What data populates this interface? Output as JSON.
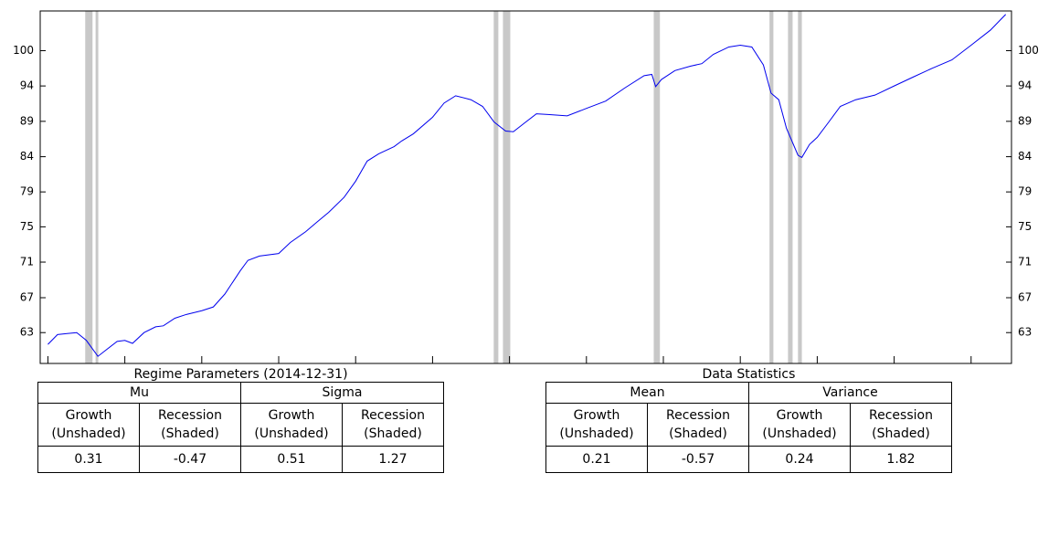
{
  "chart_data": {
    "type": "line",
    "log_scale": true,
    "color": "#0000ee",
    "shade_color": "#c8c8c8",
    "x": [
      1990.0,
      1990.25,
      1990.5,
      1990.75,
      1991.0,
      1991.3,
      1991.5,
      1991.8,
      1992.0,
      1992.2,
      1992.5,
      1992.8,
      1993.0,
      1993.3,
      1993.6,
      1994.0,
      1994.3,
      1994.6,
      1995.0,
      1995.2,
      1995.5,
      1996.0,
      1996.3,
      1996.7,
      1997.0,
      1997.3,
      1997.7,
      1998.0,
      1998.3,
      1998.6,
      1999.0,
      1999.2,
      1999.5,
      2000.0,
      2000.3,
      2000.6,
      2001.0,
      2001.3,
      2001.6,
      2001.9,
      2002.1,
      2002.4,
      2002.7,
      2003.0,
      2003.5,
      2004.0,
      2004.5,
      2005.0,
      2005.5,
      2005.7,
      2005.8,
      2005.95,
      2006.3,
      2006.7,
      2007.0,
      2007.3,
      2007.7,
      2008.0,
      2008.3,
      2008.6,
      2008.8,
      2009.0,
      2009.2,
      2009.5,
      2009.6,
      2009.8,
      2010.0,
      2010.3,
      2010.6,
      2011.0,
      2011.5,
      2012.0,
      2012.5,
      2013.0,
      2013.5,
      2014.0,
      2014.5,
      2014.9
    ],
    "values": [
      61.9,
      62.9,
      63.0,
      63.1,
      62.3,
      60.7,
      61.3,
      62.2,
      62.3,
      62.0,
      63.1,
      63.7,
      63.8,
      64.6,
      65.0,
      65.4,
      65.8,
      67.2,
      69.8,
      71.0,
      71.5,
      71.8,
      73.1,
      74.4,
      75.6,
      76.8,
      78.7,
      80.8,
      83.5,
      84.5,
      85.5,
      86.3,
      87.3,
      89.7,
      91.8,
      92.9,
      92.3,
      91.3,
      89.0,
      87.7,
      87.6,
      88.9,
      90.2,
      90.1,
      89.9,
      91.0,
      92.1,
      94.1,
      96.0,
      96.2,
      94.3,
      95.4,
      96.8,
      97.5,
      97.9,
      99.4,
      100.6,
      100.9,
      100.6,
      97.7,
      93.3,
      92.3,
      88.1,
      84.3,
      84.0,
      85.8,
      86.8,
      89.0,
      91.3,
      92.3,
      93.0,
      94.4,
      95.8,
      97.2,
      98.5,
      100.9,
      103.4,
      106.1
    ],
    "shaded": [
      [
        1990.97,
        1991.16
      ],
      [
        1991.24,
        1991.31
      ],
      [
        2001.59,
        2001.71
      ],
      [
        2001.83,
        2002.02
      ],
      [
        2005.75,
        2005.91
      ],
      [
        2008.76,
        2008.86
      ],
      [
        2009.24,
        2009.36
      ],
      [
        2009.5,
        2009.6
      ]
    ],
    "xlim": [
      1989.8,
      2015.05
    ],
    "xticks": [
      1990,
      1992,
      1994,
      1996,
      1998,
      2000,
      2002,
      2004,
      2006,
      2008,
      2010,
      2012,
      2014
    ],
    "ylim": [
      60.0,
      106.7
    ],
    "yticks": [
      {
        "value": 63.1,
        "label": "63"
      },
      {
        "value": 66.8,
        "label": "67"
      },
      {
        "value": 70.8,
        "label": "71"
      },
      75,
      {
        "value": 79.4,
        "label": "79"
      },
      {
        "value": 84.1,
        "label": "84"
      },
      {
        "value": 89.1,
        "label": "89"
      },
      {
        "value": 94.4,
        "label": "94"
      },
      100
    ]
  },
  "tables": [
    {
      "title": "Regime Parameters (2014-12-31)",
      "groups": [
        "Mu",
        "Sigma"
      ],
      "subheaders": [
        "Growth\n(Unshaded)",
        "Recession\n(Shaded)",
        "Growth\n(Unshaded)",
        "Recession\n(Shaded)"
      ],
      "values": [
        0.31,
        -0.47,
        0.51,
        1.27
      ]
    },
    {
      "title": "Data Statistics",
      "groups": [
        "Mean",
        "Variance"
      ],
      "subheaders": [
        "Growth\n(Unshaded)",
        "Recession\n(Shaded)",
        "Growth\n(Unshaded)",
        "Recession\n(Shaded)"
      ],
      "values": [
        0.21,
        -0.57,
        0.24,
        1.82
      ]
    }
  ]
}
